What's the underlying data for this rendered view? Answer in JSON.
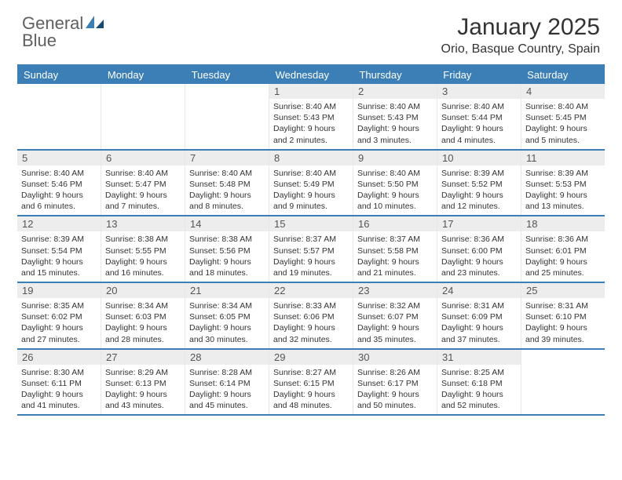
{
  "brand": {
    "name1": "General",
    "name2": "Blue",
    "accent": "#3b7fb6",
    "text_color": "#5f5f5f",
    "logo_dark": "#164a6f"
  },
  "title": "January 2025",
  "location": "Orio, Basque Country, Spain",
  "style": {
    "background": "#ffffff",
    "header_bar": "#3b7fb6",
    "header_text": "#ffffff",
    "daynum_bg": "#ededed",
    "daynum_color": "#555555",
    "cell_border": "#e8e8e8",
    "row_border": "#3b7fb6",
    "body_text": "#333333",
    "title_fontsize": 30,
    "location_fontsize": 16,
    "info_fontsize": 10.5
  },
  "days_of_week": [
    "Sunday",
    "Monday",
    "Tuesday",
    "Wednesday",
    "Thursday",
    "Friday",
    "Saturday"
  ],
  "weeks": [
    [
      {
        "empty": true
      },
      {
        "empty": true
      },
      {
        "empty": true
      },
      {
        "day": "1",
        "sunrise": "8:40 AM",
        "sunset": "5:43 PM",
        "daylight1": "Daylight: 9 hours",
        "daylight2": "and 2 minutes."
      },
      {
        "day": "2",
        "sunrise": "8:40 AM",
        "sunset": "5:43 PM",
        "daylight1": "Daylight: 9 hours",
        "daylight2": "and 3 minutes."
      },
      {
        "day": "3",
        "sunrise": "8:40 AM",
        "sunset": "5:44 PM",
        "daylight1": "Daylight: 9 hours",
        "daylight2": "and 4 minutes."
      },
      {
        "day": "4",
        "sunrise": "8:40 AM",
        "sunset": "5:45 PM",
        "daylight1": "Daylight: 9 hours",
        "daylight2": "and 5 minutes."
      }
    ],
    [
      {
        "day": "5",
        "sunrise": "8:40 AM",
        "sunset": "5:46 PM",
        "daylight1": "Daylight: 9 hours",
        "daylight2": "and 6 minutes."
      },
      {
        "day": "6",
        "sunrise": "8:40 AM",
        "sunset": "5:47 PM",
        "daylight1": "Daylight: 9 hours",
        "daylight2": "and 7 minutes."
      },
      {
        "day": "7",
        "sunrise": "8:40 AM",
        "sunset": "5:48 PM",
        "daylight1": "Daylight: 9 hours",
        "daylight2": "and 8 minutes."
      },
      {
        "day": "8",
        "sunrise": "8:40 AM",
        "sunset": "5:49 PM",
        "daylight1": "Daylight: 9 hours",
        "daylight2": "and 9 minutes."
      },
      {
        "day": "9",
        "sunrise": "8:40 AM",
        "sunset": "5:50 PM",
        "daylight1": "Daylight: 9 hours",
        "daylight2": "and 10 minutes."
      },
      {
        "day": "10",
        "sunrise": "8:39 AM",
        "sunset": "5:52 PM",
        "daylight1": "Daylight: 9 hours",
        "daylight2": "and 12 minutes."
      },
      {
        "day": "11",
        "sunrise": "8:39 AM",
        "sunset": "5:53 PM",
        "daylight1": "Daylight: 9 hours",
        "daylight2": "and 13 minutes."
      }
    ],
    [
      {
        "day": "12",
        "sunrise": "8:39 AM",
        "sunset": "5:54 PM",
        "daylight1": "Daylight: 9 hours",
        "daylight2": "and 15 minutes."
      },
      {
        "day": "13",
        "sunrise": "8:38 AM",
        "sunset": "5:55 PM",
        "daylight1": "Daylight: 9 hours",
        "daylight2": "and 16 minutes."
      },
      {
        "day": "14",
        "sunrise": "8:38 AM",
        "sunset": "5:56 PM",
        "daylight1": "Daylight: 9 hours",
        "daylight2": "and 18 minutes."
      },
      {
        "day": "15",
        "sunrise": "8:37 AM",
        "sunset": "5:57 PM",
        "daylight1": "Daylight: 9 hours",
        "daylight2": "and 19 minutes."
      },
      {
        "day": "16",
        "sunrise": "8:37 AM",
        "sunset": "5:58 PM",
        "daylight1": "Daylight: 9 hours",
        "daylight2": "and 21 minutes."
      },
      {
        "day": "17",
        "sunrise": "8:36 AM",
        "sunset": "6:00 PM",
        "daylight1": "Daylight: 9 hours",
        "daylight2": "and 23 minutes."
      },
      {
        "day": "18",
        "sunrise": "8:36 AM",
        "sunset": "6:01 PM",
        "daylight1": "Daylight: 9 hours",
        "daylight2": "and 25 minutes."
      }
    ],
    [
      {
        "day": "19",
        "sunrise": "8:35 AM",
        "sunset": "6:02 PM",
        "daylight1": "Daylight: 9 hours",
        "daylight2": "and 27 minutes."
      },
      {
        "day": "20",
        "sunrise": "8:34 AM",
        "sunset": "6:03 PM",
        "daylight1": "Daylight: 9 hours",
        "daylight2": "and 28 minutes."
      },
      {
        "day": "21",
        "sunrise": "8:34 AM",
        "sunset": "6:05 PM",
        "daylight1": "Daylight: 9 hours",
        "daylight2": "and 30 minutes."
      },
      {
        "day": "22",
        "sunrise": "8:33 AM",
        "sunset": "6:06 PM",
        "daylight1": "Daylight: 9 hours",
        "daylight2": "and 32 minutes."
      },
      {
        "day": "23",
        "sunrise": "8:32 AM",
        "sunset": "6:07 PM",
        "daylight1": "Daylight: 9 hours",
        "daylight2": "and 35 minutes."
      },
      {
        "day": "24",
        "sunrise": "8:31 AM",
        "sunset": "6:09 PM",
        "daylight1": "Daylight: 9 hours",
        "daylight2": "and 37 minutes."
      },
      {
        "day": "25",
        "sunrise": "8:31 AM",
        "sunset": "6:10 PM",
        "daylight1": "Daylight: 9 hours",
        "daylight2": "and 39 minutes."
      }
    ],
    [
      {
        "day": "26",
        "sunrise": "8:30 AM",
        "sunset": "6:11 PM",
        "daylight1": "Daylight: 9 hours",
        "daylight2": "and 41 minutes."
      },
      {
        "day": "27",
        "sunrise": "8:29 AM",
        "sunset": "6:13 PM",
        "daylight1": "Daylight: 9 hours",
        "daylight2": "and 43 minutes."
      },
      {
        "day": "28",
        "sunrise": "8:28 AM",
        "sunset": "6:14 PM",
        "daylight1": "Daylight: 9 hours",
        "daylight2": "and 45 minutes."
      },
      {
        "day": "29",
        "sunrise": "8:27 AM",
        "sunset": "6:15 PM",
        "daylight1": "Daylight: 9 hours",
        "daylight2": "and 48 minutes."
      },
      {
        "day": "30",
        "sunrise": "8:26 AM",
        "sunset": "6:17 PM",
        "daylight1": "Daylight: 9 hours",
        "daylight2": "and 50 minutes."
      },
      {
        "day": "31",
        "sunrise": "8:25 AM",
        "sunset": "6:18 PM",
        "daylight1": "Daylight: 9 hours",
        "daylight2": "and 52 minutes."
      },
      {
        "empty": true
      }
    ]
  ]
}
